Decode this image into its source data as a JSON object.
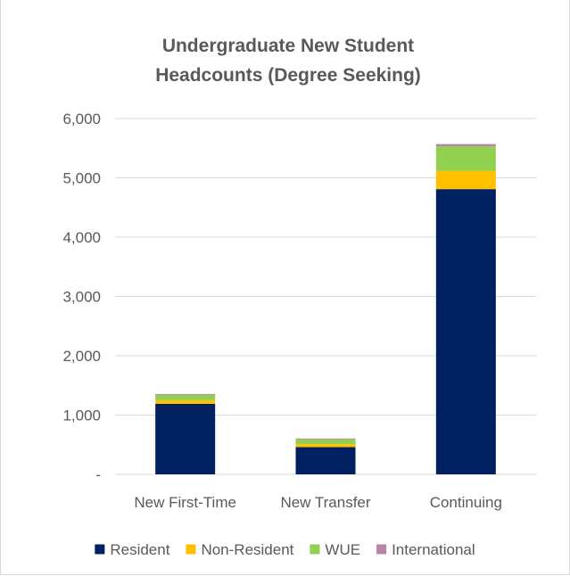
{
  "chart_data": {
    "type": "bar",
    "stacked": true,
    "title": "Undergraduate New Student Headcounts (Degree Seeking)",
    "title_lines": [
      "Undergraduate New Student",
      "Headcounts (Degree Seeking)"
    ],
    "xlabel": "",
    "ylabel": "",
    "categories": [
      "New First-Time",
      "New Transfer",
      "Continuing"
    ],
    "ylim": [
      0,
      6000
    ],
    "yticks": [
      {
        "value": 0,
        "label": "-"
      },
      {
        "value": 1000,
        "label": "1,000"
      },
      {
        "value": 2000,
        "label": "2,000"
      },
      {
        "value": 3000,
        "label": "3,000"
      },
      {
        "value": 4000,
        "label": "4,000"
      },
      {
        "value": 5000,
        "label": "5,000"
      },
      {
        "value": 6000,
        "label": "6,000"
      }
    ],
    "grid": true,
    "legend_position": "bottom",
    "series": [
      {
        "name": "Resident",
        "color": "#002060",
        "values": [
          1190,
          460,
          4810
        ]
      },
      {
        "name": "Non-Resident",
        "color": "#ffc000",
        "values": [
          60,
          50,
          310
        ]
      },
      {
        "name": "WUE",
        "color": "#92d050",
        "values": [
          90,
          80,
          410
        ]
      },
      {
        "name": "International",
        "color": "#b784a7",
        "values": [
          15,
          15,
          40
        ]
      }
    ]
  }
}
